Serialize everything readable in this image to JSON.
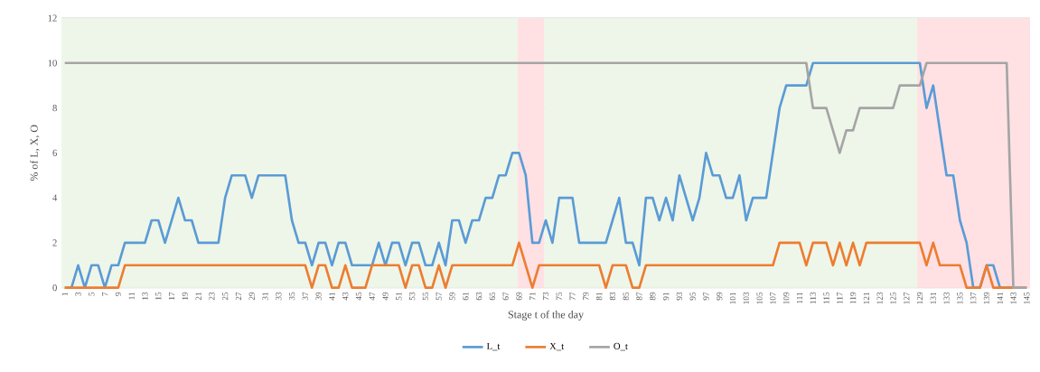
{
  "chart_data": {
    "type": "line",
    "xlabel": "Stage t of the day",
    "ylabel": "% of L, X, O",
    "x": [
      1,
      2,
      3,
      4,
      5,
      6,
      7,
      8,
      9,
      10,
      11,
      12,
      13,
      14,
      15,
      16,
      17,
      18,
      19,
      20,
      21,
      22,
      23,
      24,
      25,
      26,
      27,
      28,
      29,
      30,
      31,
      32,
      33,
      34,
      35,
      36,
      37,
      38,
      39,
      40,
      41,
      42,
      43,
      44,
      45,
      46,
      47,
      48,
      49,
      50,
      51,
      52,
      53,
      54,
      55,
      56,
      57,
      58,
      59,
      60,
      61,
      62,
      63,
      64,
      65,
      66,
      67,
      68,
      69,
      70,
      71,
      72,
      73,
      74,
      75,
      76,
      77,
      78,
      79,
      80,
      81,
      82,
      83,
      84,
      85,
      86,
      87,
      88,
      89,
      90,
      91,
      92,
      93,
      94,
      95,
      96,
      97,
      98,
      99,
      100,
      101,
      102,
      103,
      104,
      105,
      106,
      107,
      108,
      109,
      110,
      111,
      112,
      113,
      114,
      115,
      116,
      117,
      118,
      119,
      120,
      121,
      122,
      123,
      124,
      125,
      126,
      127,
      128,
      129,
      130,
      131,
      132,
      133,
      134,
      135,
      136,
      137,
      138,
      139,
      140,
      141,
      142,
      143,
      144,
      145
    ],
    "series": [
      {
        "name": "L_t",
        "color": "#5b9bd5",
        "values": [
          0,
          0,
          1,
          0,
          1,
          1,
          0,
          1,
          1,
          2,
          2,
          2,
          2,
          3,
          3,
          2,
          3,
          4,
          3,
          3,
          2,
          2,
          2,
          2,
          4,
          5,
          5,
          5,
          4,
          5,
          5,
          5,
          5,
          5,
          3,
          2,
          2,
          1,
          2,
          2,
          1,
          2,
          2,
          1,
          1,
          1,
          1,
          2,
          1,
          2,
          2,
          1,
          2,
          2,
          1,
          1,
          2,
          1,
          3,
          3,
          2,
          3,
          3,
          4,
          4,
          5,
          5,
          6,
          6,
          5,
          2,
          2,
          3,
          2,
          4,
          4,
          4,
          2,
          2,
          2,
          2,
          2,
          3,
          4,
          2,
          2,
          1,
          4,
          4,
          3,
          4,
          3,
          5,
          4,
          3,
          4,
          6,
          5,
          5,
          4,
          4,
          5,
          3,
          4,
          4,
          4,
          6,
          8,
          9,
          9,
          9,
          9,
          10,
          10,
          10,
          10,
          10,
          10,
          10,
          10,
          10,
          10,
          10,
          10,
          10,
          10,
          10,
          10,
          10,
          8,
          9,
          7,
          5,
          5,
          3,
          2,
          0,
          0,
          1,
          1,
          0,
          0,
          0,
          null,
          null
        ]
      },
      {
        "name": "X_t",
        "color": "#ed7d31",
        "values": [
          0,
          0,
          0,
          0,
          0,
          0,
          0,
          0,
          0,
          1,
          1,
          1,
          1,
          1,
          1,
          1,
          1,
          1,
          1,
          1,
          1,
          1,
          1,
          1,
          1,
          1,
          1,
          1,
          1,
          1,
          1,
          1,
          1,
          1,
          1,
          1,
          1,
          0,
          1,
          1,
          0,
          0,
          1,
          0,
          0,
          0,
          1,
          1,
          1,
          1,
          1,
          0,
          1,
          1,
          0,
          0,
          1,
          0,
          1,
          1,
          1,
          1,
          1,
          1,
          1,
          1,
          1,
          1,
          2,
          1,
          0,
          1,
          1,
          1,
          1,
          1,
          1,
          1,
          1,
          1,
          1,
          0,
          1,
          1,
          1,
          0,
          0,
          1,
          1,
          1,
          1,
          1,
          1,
          1,
          1,
          1,
          1,
          1,
          1,
          1,
          1,
          1,
          1,
          1,
          1,
          1,
          1,
          2,
          2,
          2,
          2,
          1,
          2,
          2,
          2,
          1,
          2,
          1,
          2,
          1,
          2,
          2,
          2,
          2,
          2,
          2,
          2,
          2,
          2,
          1,
          2,
          1,
          1,
          1,
          1,
          0,
          0,
          0,
          1,
          0,
          0,
          0,
          0,
          0,
          0
        ]
      },
      {
        "name": "O_t",
        "color": "#a5a5a5",
        "values": [
          10,
          10,
          10,
          10,
          10,
          10,
          10,
          10,
          10,
          10,
          10,
          10,
          10,
          10,
          10,
          10,
          10,
          10,
          10,
          10,
          10,
          10,
          10,
          10,
          10,
          10,
          10,
          10,
          10,
          10,
          10,
          10,
          10,
          10,
          10,
          10,
          10,
          10,
          10,
          10,
          10,
          10,
          10,
          10,
          10,
          10,
          10,
          10,
          10,
          10,
          10,
          10,
          10,
          10,
          10,
          10,
          10,
          10,
          10,
          10,
          10,
          10,
          10,
          10,
          10,
          10,
          10,
          10,
          10,
          10,
          10,
          10,
          10,
          10,
          10,
          10,
          10,
          10,
          10,
          10,
          10,
          10,
          10,
          10,
          10,
          10,
          10,
          10,
          10,
          10,
          10,
          10,
          10,
          10,
          10,
          10,
          10,
          10,
          10,
          10,
          10,
          10,
          10,
          10,
          10,
          10,
          10,
          10,
          10,
          10,
          10,
          10,
          8,
          8,
          8,
          7,
          6,
          7,
          7,
          8,
          8,
          8,
          8,
          8,
          8,
          9,
          9,
          9,
          9,
          10,
          10,
          10,
          10,
          10,
          10,
          10,
          10,
          10,
          10,
          10,
          10,
          10,
          0,
          0,
          0
        ]
      }
    ],
    "xlim": [
      0.5,
      145.5
    ],
    "xticks": [
      1,
      3,
      5,
      7,
      9,
      11,
      13,
      15,
      17,
      19,
      21,
      23,
      25,
      27,
      29,
      31,
      33,
      35,
      37,
      39,
      41,
      43,
      45,
      47,
      49,
      51,
      53,
      55,
      57,
      59,
      61,
      63,
      65,
      67,
      69,
      71,
      73,
      75,
      77,
      79,
      81,
      83,
      85,
      87,
      89,
      91,
      93,
      95,
      97,
      99,
      101,
      103,
      105,
      107,
      109,
      111,
      113,
      115,
      117,
      119,
      121,
      123,
      125,
      127,
      129,
      131,
      133,
      135,
      137,
      139,
      141,
      143,
      145
    ],
    "ylim": [
      0,
      12
    ],
    "yticks": [
      0,
      2,
      4,
      6,
      8,
      10,
      12
    ],
    "bands": [
      {
        "axis": "x",
        "from": 0.5,
        "to": 68.8,
        "color": "#eef6e9"
      },
      {
        "axis": "x",
        "from": 68.8,
        "to": 72.8,
        "color": "#ffe1e4"
      },
      {
        "axis": "x",
        "from": 72.8,
        "to": 128.6,
        "color": "#eef6e9"
      },
      {
        "axis": "x",
        "from": 128.6,
        "to": 145.5,
        "color": "#ffe1e4"
      }
    ],
    "grid": "y",
    "legend": "bottom",
    "marker": "none",
    "line_style": "solid"
  }
}
